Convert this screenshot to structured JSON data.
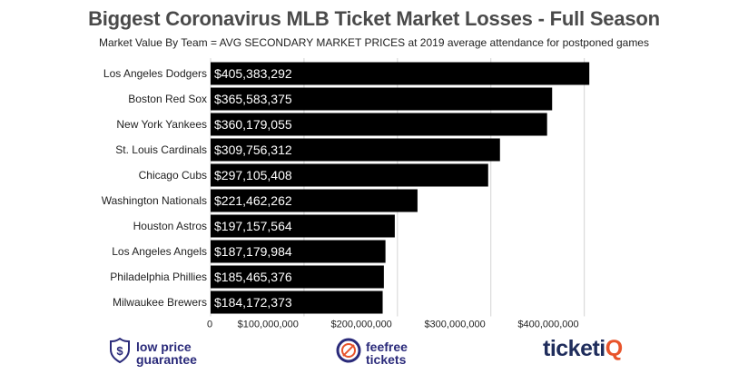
{
  "title": "Biggest Coronavirus MLB Ticket Market Losses - Full Season",
  "subtitle": "Market Value By Team = AVG SECONDARY MARKET PRICES at 2019 average attendance for postponed games",
  "chart_data": {
    "type": "bar",
    "orientation": "horizontal",
    "title": "Biggest Coronavirus MLB Ticket Market Losses - Full Season",
    "subtitle": "Market Value By Team = AVG SECONDARY MARKET PRICES at 2019 average attendance for postponed games",
    "categories": [
      "Los Angeles Dodgers",
      "Boston Red Sox",
      "New York Yankees",
      "St. Louis Cardinals",
      "Chicago Cubs",
      "Washington Nationals",
      "Houston Astros",
      "Los Angeles Angels",
      "Philadelphia Phillies",
      "Milwaukee Brewers"
    ],
    "values": [
      405383292,
      365583375,
      360179055,
      309756312,
      297105408,
      221462262,
      197157564,
      187179984,
      185465376,
      184172373
    ],
    "data_labels": [
      "$405,383,292",
      "$365,583,375",
      "$360,179,055",
      "$309,756,312",
      "$297,105,408",
      "$221,462,262",
      "$197,157,564",
      "$187,179,984",
      "$185,465,376",
      "$184,172,373"
    ],
    "xticks": [
      0,
      100000000,
      200000000,
      300000000,
      400000000
    ],
    "xtick_labels": [
      "0",
      "$100,000,000",
      "$200,000,000",
      "$300,000,000",
      "$400,000,000"
    ],
    "xlim": [
      0,
      412000000
    ],
    "xlabel": "",
    "ylabel": "",
    "grid": true,
    "bar_color": "#000000",
    "label_color": "#ffffff"
  },
  "footer": {
    "low_price": {
      "line1": "low price",
      "line2": "guarantee",
      "icon": "dollar-shield-icon",
      "color": "#2a2a7a"
    },
    "feefree": {
      "line1": "feefree",
      "line2": "tickets",
      "icon": "no-fees-badge-icon",
      "color": "#2a2a7a"
    },
    "ticketiq": {
      "part1": "ticketi",
      "part2": "Q",
      "color": "#1f2d5c",
      "accent": "#e8542b"
    }
  }
}
